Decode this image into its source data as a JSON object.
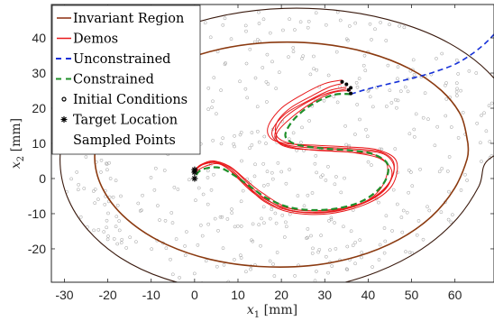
{
  "chart_data": {
    "type": "line",
    "xlabel": "x_1 [mm]",
    "xlabel_parts": {
      "var": "x",
      "sub": "1",
      "unit": "[mm]"
    },
    "ylabel": "x_2 [mm]",
    "ylabel_parts": {
      "var": "x",
      "sub": "2",
      "unit": "[mm]"
    },
    "xlim": [
      -33,
      69
    ],
    "ylim": [
      -29.5,
      49.5
    ],
    "xticks": [
      -30,
      -20,
      -10,
      0,
      10,
      20,
      30,
      40,
      50,
      60
    ],
    "yticks": [
      -20,
      -10,
      0,
      10,
      20,
      30,
      40
    ],
    "grid": false,
    "legend_position": "top-left",
    "legend": [
      {
        "label": "Invariant Region",
        "style": "line",
        "color": "#8b2c0d"
      },
      {
        "label": "Demos",
        "style": "line",
        "color": "#e8181a"
      },
      {
        "label": "Unconstrained",
        "style": "dashed",
        "color": "#1530d8"
      },
      {
        "label": "Constrained",
        "style": "dashed",
        "color": "#1f8f2a"
      },
      {
        "label": "Initial Conditions",
        "style": "marker-o",
        "color": "#000000"
      },
      {
        "label": "Target Location",
        "style": "marker-star",
        "color": "#000000"
      },
      {
        "label": "Sampled Points",
        "style": "none",
        "color": "#888888"
      }
    ],
    "colors": {
      "outer_region": "#3a1a0e",
      "invariant_region": "#8b3a10",
      "demos": "#e8181a",
      "unconstrained": "#1530d8",
      "constrained": "#1f8f2a",
      "sampled": "#9a9a9a"
    },
    "series": [
      {
        "name": "Invariant Region",
        "points": [
          [
            63,
            10
          ],
          [
            61.4,
            17.9
          ],
          [
            56.9,
            25
          ],
          [
            49.6,
            31.2
          ],
          [
            40.2,
            35.7
          ],
          [
            29.2,
            38.3
          ],
          [
            17.6,
            38.7
          ],
          [
            6.2,
            36.9
          ],
          [
            -4.2,
            32.9
          ],
          [
            -12.8,
            27.1
          ],
          [
            -19,
            19.8
          ],
          [
            -22.4,
            11.6
          ],
          [
            -22.8,
            3
          ],
          [
            -20,
            -5.4
          ],
          [
            -14.4,
            -12.8
          ],
          [
            -6.4,
            -18.8
          ],
          [
            3.6,
            -23
          ],
          [
            14.8,
            -25
          ],
          [
            26.4,
            -24.8
          ],
          [
            37.4,
            -22.2
          ],
          [
            47,
            -17.4
          ],
          [
            54.6,
            -10.8
          ],
          [
            59.9,
            -2.8
          ],
          [
            62.8,
            5.6
          ],
          [
            63,
            10
          ]
        ]
      },
      {
        "name": "",
        "points": [
          [
            75,
            10
          ],
          [
            73,
            21
          ],
          [
            67.5,
            30.5
          ],
          [
            58.8,
            38.4
          ],
          [
            47.5,
            44.2
          ],
          [
            34.5,
            47.6
          ],
          [
            20.7,
            48.4
          ],
          [
            7.2,
            46.5
          ],
          [
            -5.4,
            42
          ],
          [
            -16,
            35.2
          ],
          [
            -24.1,
            26.5
          ],
          [
            -29.2,
            16.4
          ],
          [
            -31,
            5.6
          ],
          [
            -29.4,
            -5
          ],
          [
            -24.6,
            -14.6
          ],
          [
            -17,
            -22.6
          ],
          [
            -7,
            -28.4
          ],
          [
            4.7,
            -31.6
          ],
          [
            17.4,
            -32.4
          ],
          [
            30.1,
            -30.8
          ],
          [
            42,
            -26.6
          ],
          [
            52.2,
            -20.2
          ],
          [
            60.2,
            -11.8
          ],
          [
            65.5,
            -2.2
          ],
          [
            67.4,
            5
          ],
          [
            75,
            10
          ]
        ]
      },
      {
        "name": "Demos",
        "points": [
          [
            34,
            27
          ],
          [
            31,
            26
          ],
          [
            27,
            23.5
          ],
          [
            22,
            20
          ],
          [
            19,
            16
          ],
          [
            19,
            12
          ],
          [
            22,
            10
          ],
          [
            28,
            9
          ],
          [
            36,
            8.5
          ],
          [
            43,
            7.5
          ],
          [
            46,
            4
          ],
          [
            44,
            -3
          ],
          [
            38,
            -7.5
          ],
          [
            30,
            -9.5
          ],
          [
            22,
            -9
          ],
          [
            16,
            -5.5
          ],
          [
            12,
            -1
          ],
          [
            9,
            2.5
          ],
          [
            6,
            4.5
          ],
          [
            3,
            4.5
          ],
          [
            0.5,
            3
          ],
          [
            0,
            2
          ]
        ]
      },
      {
        "name": "",
        "points": [
          [
            35,
            26
          ],
          [
            31,
            25
          ],
          [
            26,
            22
          ],
          [
            21,
            18.5
          ],
          [
            18,
            14
          ],
          [
            18.5,
            11
          ],
          [
            22,
            9
          ],
          [
            28,
            8
          ],
          [
            36,
            7.5
          ],
          [
            42,
            6.5
          ],
          [
            44.5,
            3
          ],
          [
            42.5,
            -3.5
          ],
          [
            37,
            -7.8
          ],
          [
            29,
            -9.2
          ],
          [
            21,
            -8.3
          ],
          [
            15,
            -5
          ],
          [
            11,
            -0.5
          ],
          [
            8,
            3
          ],
          [
            5,
            4.5
          ],
          [
            2,
            4
          ],
          [
            0.3,
            2.5
          ],
          [
            0,
            2
          ]
        ]
      },
      {
        "name": "",
        "points": [
          [
            36,
            25
          ],
          [
            32,
            24.5
          ],
          [
            27,
            21.5
          ],
          [
            22,
            17
          ],
          [
            19,
            13
          ],
          [
            19.5,
            10
          ],
          [
            23,
            8.5
          ],
          [
            30,
            8
          ],
          [
            37,
            7.3
          ],
          [
            43,
            5.5
          ],
          [
            45.5,
            1.5
          ],
          [
            43,
            -4
          ],
          [
            36,
            -8.3
          ],
          [
            28,
            -9.8
          ],
          [
            20,
            -8.5
          ],
          [
            14,
            -4.5
          ],
          [
            10,
            0
          ],
          [
            7.5,
            3
          ],
          [
            4.5,
            5
          ],
          [
            1.5,
            4
          ],
          [
            0.2,
            2.5
          ],
          [
            0,
            2
          ]
        ]
      },
      {
        "name": "",
        "points": [
          [
            34,
            28
          ],
          [
            30,
            27
          ],
          [
            25,
            24
          ],
          [
            20,
            20
          ],
          [
            17,
            15
          ],
          [
            17.5,
            11.5
          ],
          [
            21,
            10
          ],
          [
            27,
            9.5
          ],
          [
            35,
            9
          ],
          [
            42,
            8.2
          ],
          [
            46.5,
            5
          ],
          [
            45.5,
            -2
          ],
          [
            40,
            -7
          ],
          [
            31,
            -10
          ],
          [
            22,
            -9.6
          ],
          [
            16,
            -6.5
          ],
          [
            12,
            -2
          ],
          [
            8.5,
            2
          ],
          [
            5.5,
            4.2
          ],
          [
            2.5,
            3.5
          ],
          [
            0.5,
            2.2
          ],
          [
            0,
            2
          ]
        ]
      },
      {
        "name": "",
        "points": [
          [
            35,
            25.5
          ],
          [
            30,
            24
          ],
          [
            25,
            21
          ],
          [
            20.5,
            17
          ],
          [
            18.5,
            12.5
          ],
          [
            20,
            10
          ],
          [
            24,
            9
          ],
          [
            30,
            8.5
          ],
          [
            37,
            8
          ],
          [
            43.5,
            7
          ],
          [
            46,
            3
          ],
          [
            44,
            -2.5
          ],
          [
            38.5,
            -7
          ],
          [
            30,
            -9
          ],
          [
            22,
            -8.5
          ],
          [
            15.5,
            -4
          ],
          [
            11.5,
            0
          ],
          [
            8,
            3.5
          ],
          [
            4,
            5
          ],
          [
            1,
            3.5
          ],
          [
            0,
            2
          ]
        ]
      },
      {
        "name": "Unconstrained",
        "points": [
          [
            36,
            24
          ],
          [
            40,
            25.5
          ],
          [
            45,
            27
          ],
          [
            50,
            28.5
          ],
          [
            55,
            30.2
          ],
          [
            60,
            32.5
          ],
          [
            64,
            35.5
          ],
          [
            67,
            38.5
          ],
          [
            69,
            41
          ]
        ]
      },
      {
        "name": "Constrained",
        "points": [
          [
            36,
            24
          ],
          [
            32,
            23.8
          ],
          [
            27,
            21
          ],
          [
            23,
            17
          ],
          [
            21,
            13
          ],
          [
            21.5,
            11
          ],
          [
            24,
            9.5
          ],
          [
            30,
            8.5
          ],
          [
            36,
            8
          ],
          [
            41,
            7
          ],
          [
            44.5,
            4
          ],
          [
            43.5,
            -1.5
          ],
          [
            38.5,
            -6.5
          ],
          [
            31,
            -8.8
          ],
          [
            23,
            -8.5
          ],
          [
            17,
            -5.8
          ],
          [
            12.5,
            -2
          ],
          [
            9,
            1
          ],
          [
            6,
            3
          ],
          [
            3,
            3
          ],
          [
            1,
            2
          ],
          [
            0,
            0
          ]
        ]
      }
    ],
    "initial_conditions": [
      [
        34,
        27.5
      ],
      [
        35,
        26.8
      ],
      [
        36,
        25.8
      ],
      [
        35.5,
        25.2
      ],
      [
        36,
        24.2
      ]
    ],
    "target_locations": [
      [
        0,
        2.5
      ],
      [
        0,
        0
      ],
      [
        0,
        1.8
      ]
    ]
  }
}
